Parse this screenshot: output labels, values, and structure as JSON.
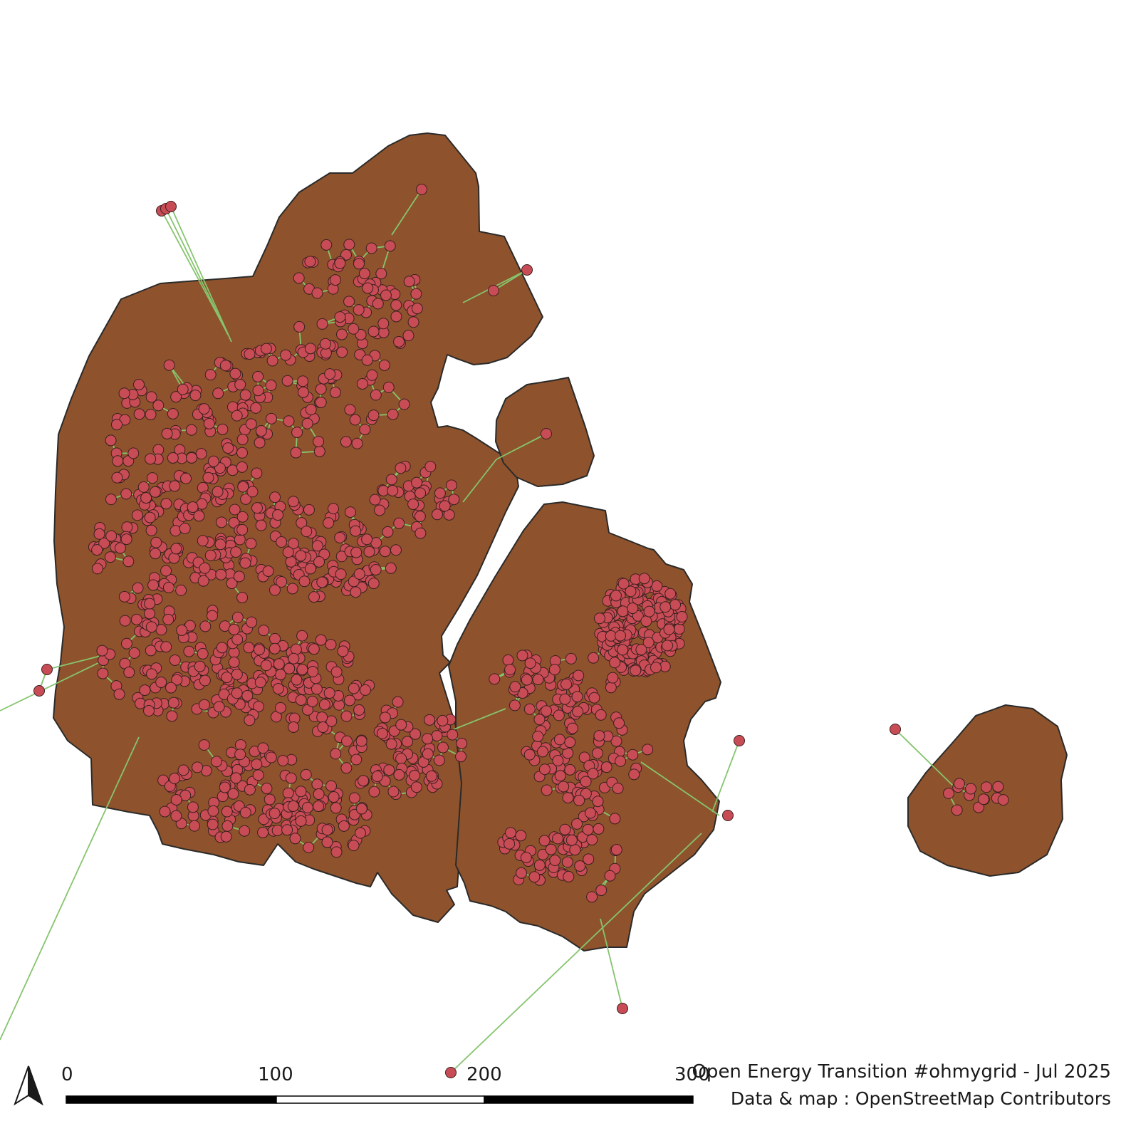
{
  "map": {
    "land_color": "#8e532c",
    "coast_color": "#2a2a2a",
    "line_color": "#86c46e",
    "node_color": "#c84c55",
    "node_outline": "#3a1f1f",
    "background": "#ffffff"
  },
  "scale_bar": {
    "labels": [
      "0",
      "100",
      "200",
      "300"
    ],
    "colors": [
      "#000000",
      "#ffffff",
      "#000000"
    ]
  },
  "north_arrow": {
    "icon": "north-arrow-icon"
  },
  "credits": {
    "title": "Open Energy Transition #ohmygrid - Jul 2025",
    "source": "Data & map : OpenStreetMap Contributors"
  }
}
